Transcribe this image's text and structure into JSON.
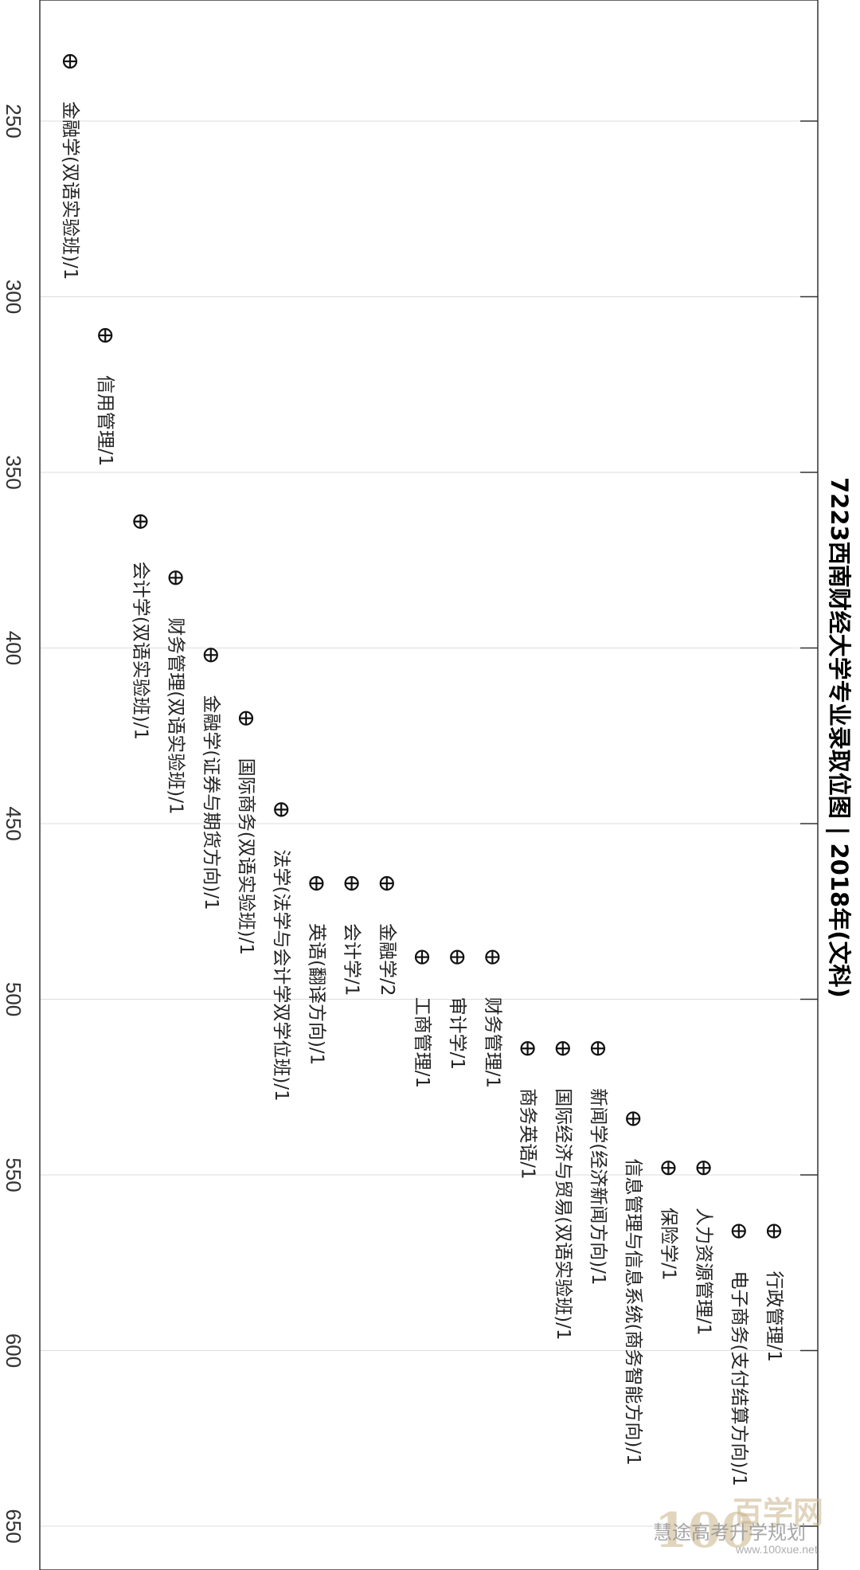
{
  "chart_data": {
    "type": "scatter",
    "title": "7223西南财经大学专业录取位图 | 2018年(文科)",
    "xlabel": "",
    "ylabel": "",
    "x_ticks": [
      250,
      300,
      350,
      400,
      450,
      500,
      550,
      600,
      650
    ],
    "grid": true,
    "points": [
      {
        "label": "金融学(双语实验班)/1",
        "x": 233
      },
      {
        "label": "信用管理/1",
        "x": 311
      },
      {
        "label": "会计学(双语实验班)/1",
        "x": 364
      },
      {
        "label": "财务管理(双语实验班)/1",
        "x": 380
      },
      {
        "label": "金融学(证券与期货方向)/1",
        "x": 402
      },
      {
        "label": "国际商务(双语实验班)/1",
        "x": 420
      },
      {
        "label": "法学(法学与会计学双学位班)/1",
        "x": 446
      },
      {
        "label": "英语(翻译方向)/1",
        "x": 467
      },
      {
        "label": "会计学/1",
        "x": 467
      },
      {
        "label": "金融学/2",
        "x": 467
      },
      {
        "label": "工商管理/1",
        "x": 488
      },
      {
        "label": "审计学/1",
        "x": 488
      },
      {
        "label": "财务管理/1",
        "x": 488
      },
      {
        "label": "商务英语/1",
        "x": 514
      },
      {
        "label": "国际经济与贸易(双语实验班)/1",
        "x": 514
      },
      {
        "label": "新闻学(经济新闻方向)/1",
        "x": 514
      },
      {
        "label": "信息管理与信息系统(商务智能方向)/1",
        "x": 534
      },
      {
        "label": "保险学/1",
        "x": 548
      },
      {
        "label": "人力资源管理/1",
        "x": 548
      },
      {
        "label": "电子商务(支付结算方向)/1",
        "x": 566
      },
      {
        "label": "行政管理/1",
        "x": 566
      }
    ]
  },
  "watermark": {
    "logo_text": "100",
    "logo_suffix": "百学网",
    "account": "慧途高考升学规划",
    "url": "www.100xue.net"
  }
}
